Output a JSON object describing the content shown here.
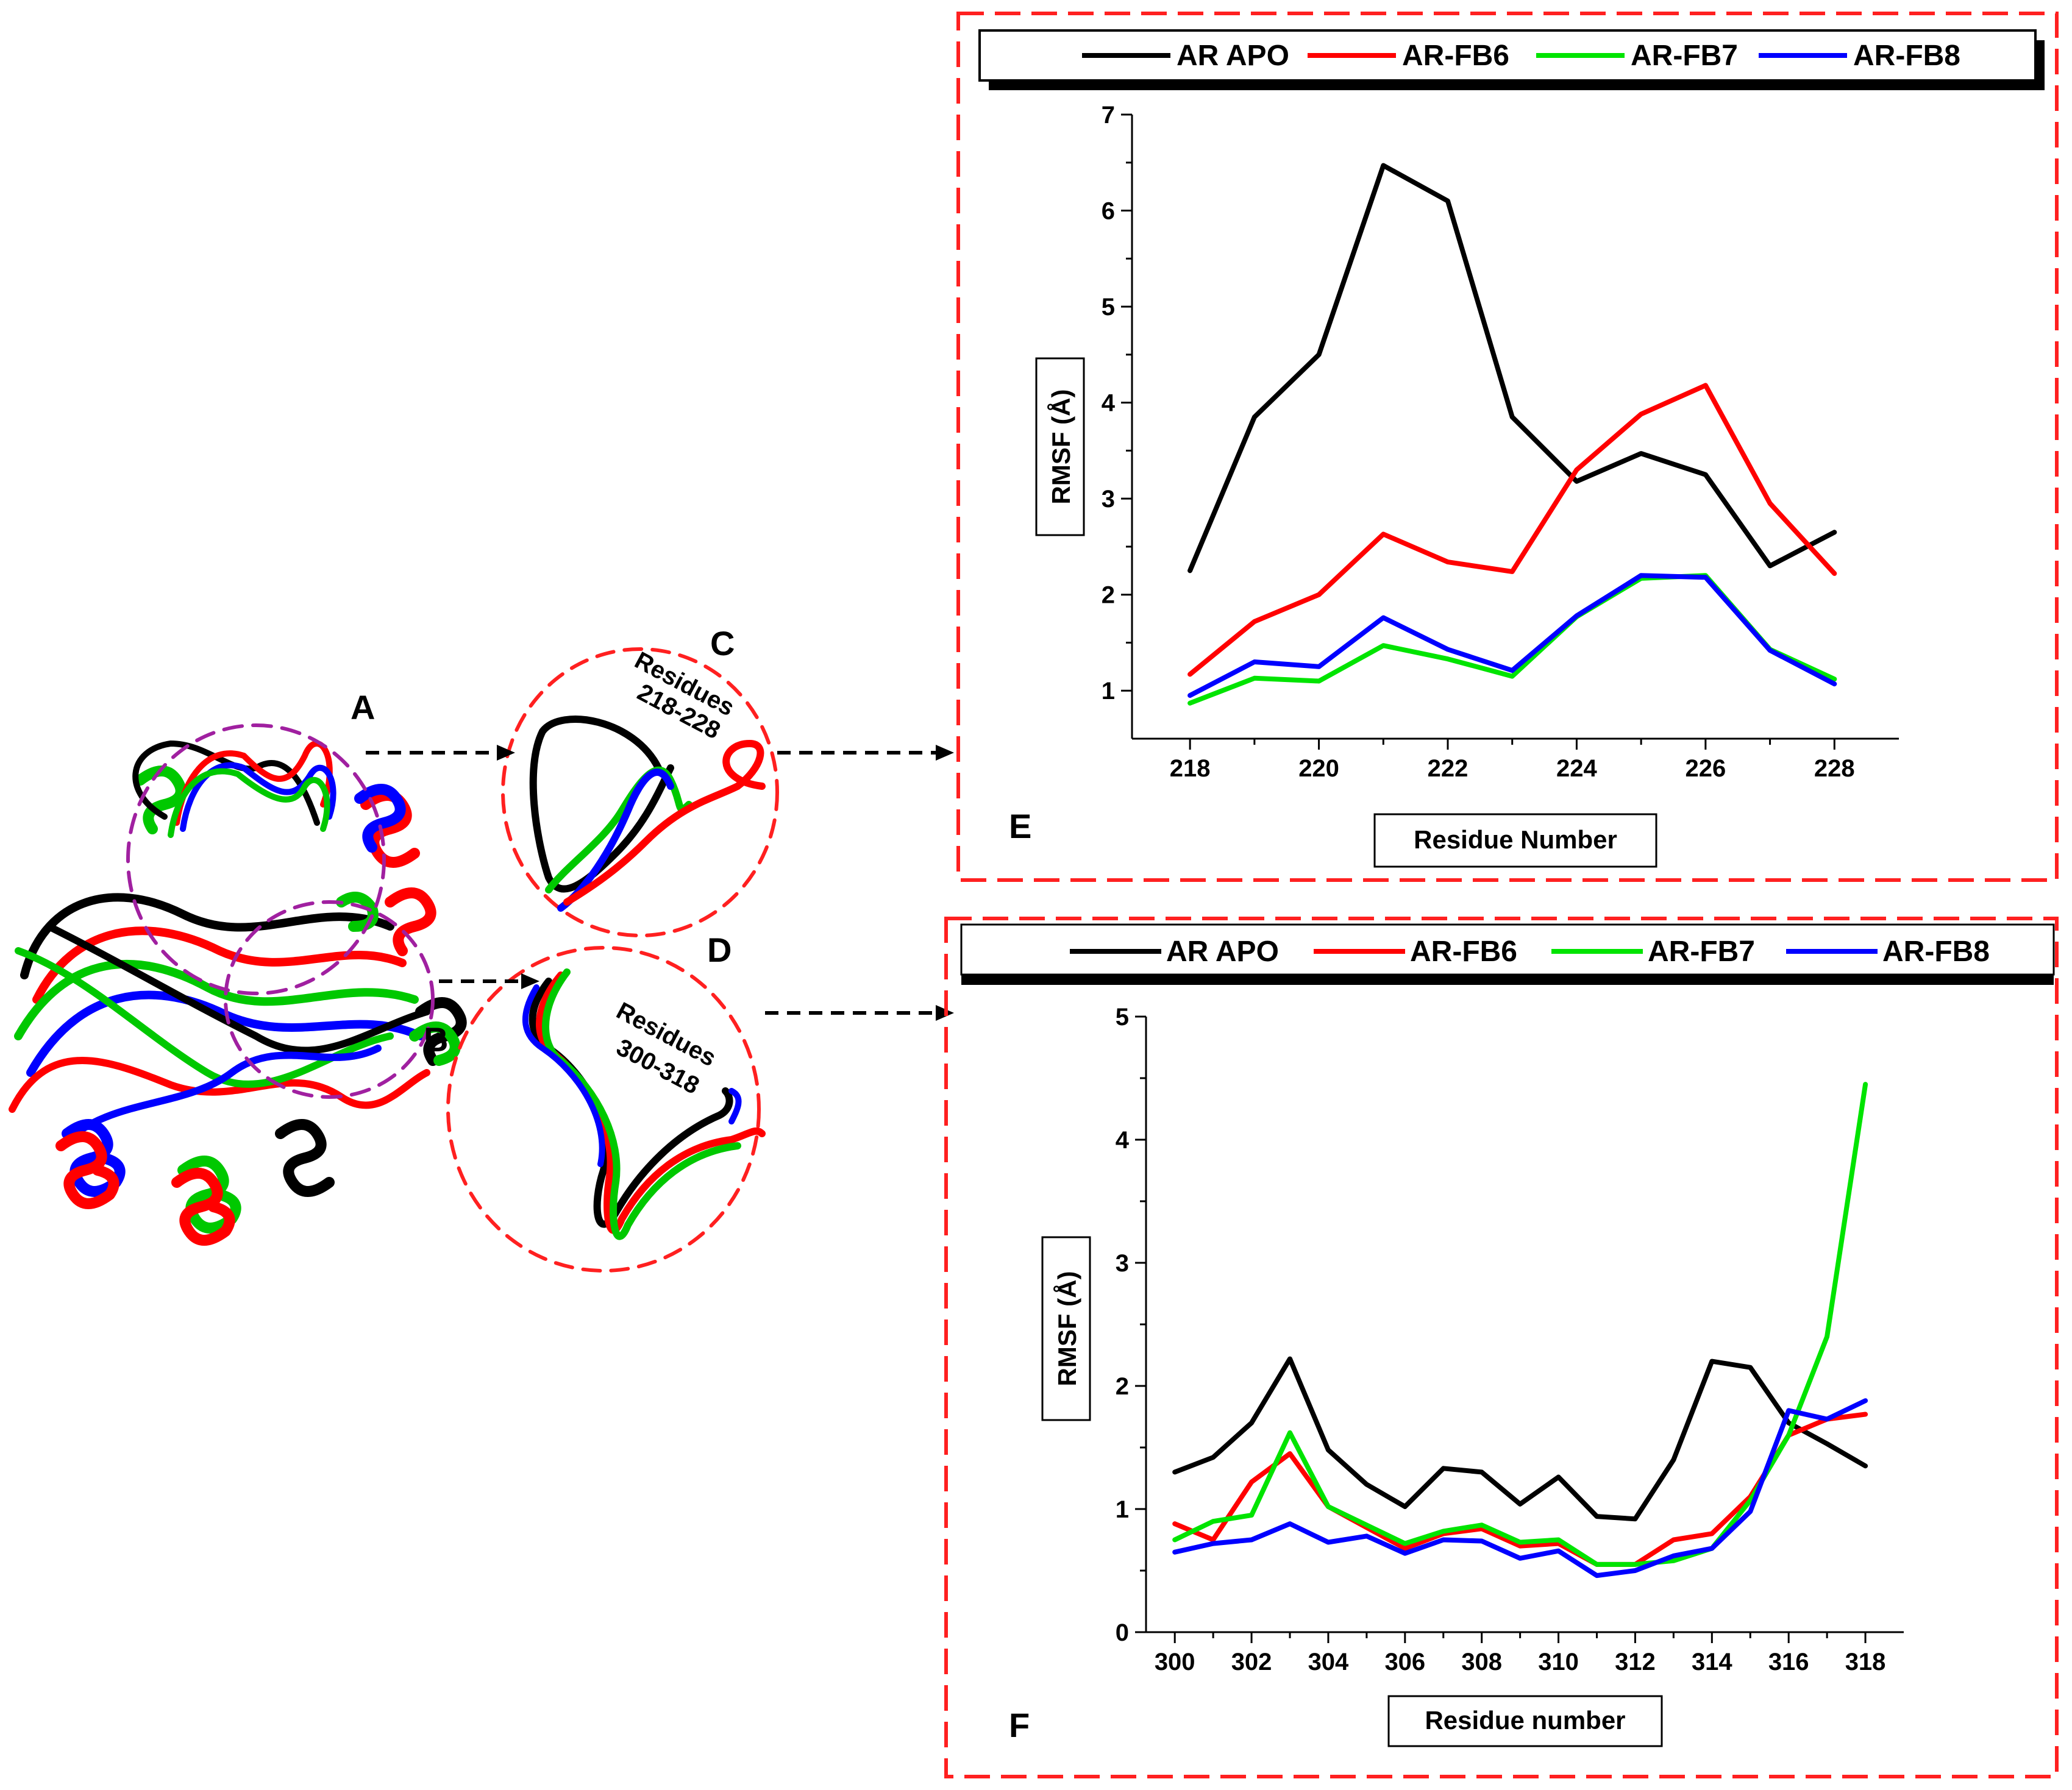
{
  "structure_view": {
    "circle_labels": {
      "a": "A",
      "b": "B",
      "c": "C",
      "d": "D"
    },
    "zoom_c_text": [
      "Residues",
      "218-228"
    ],
    "zoom_d_text": [
      "Residues",
      "300-318"
    ]
  },
  "series_colors": {
    "AR APO": "#000000",
    "AR-FB6": "#ff0000",
    "AR-FB7": "#00e400",
    "AR-FB8": "#0000ff"
  },
  "chart_data": [
    {
      "type": "line",
      "panel_label": "E",
      "xlabel": "Residue Number",
      "ylabel": "RMSF (Å)",
      "xlim": [
        217.1,
        229.0
      ],
      "ylim": [
        0.5,
        7.0
      ],
      "x_ticks": [
        218,
        220,
        222,
        224,
        226,
        228
      ],
      "y_ticks": [
        1,
        2,
        3,
        4,
        5,
        6,
        7
      ],
      "x": [
        218,
        219,
        220,
        221,
        222,
        223,
        224,
        225,
        226,
        227,
        228
      ],
      "legend": [
        "AR APO",
        "AR-FB6",
        "AR-FB7",
        "AR-FB8"
      ],
      "series": [
        {
          "name": "AR APO",
          "values": [
            2.25,
            3.85,
            4.5,
            6.47,
            6.1,
            3.85,
            3.18,
            3.47,
            3.25,
            2.3,
            2.65
          ]
        },
        {
          "name": "AR-FB6",
          "values": [
            1.17,
            1.72,
            2.0,
            2.63,
            2.34,
            2.24,
            3.3,
            3.88,
            4.18,
            2.95,
            2.22
          ]
        },
        {
          "name": "AR-FB7",
          "values": [
            0.87,
            1.13,
            1.1,
            1.47,
            1.33,
            1.15,
            1.77,
            2.17,
            2.2,
            1.43,
            1.12
          ]
        },
        {
          "name": "AR-FB8",
          "values": [
            0.95,
            1.3,
            1.25,
            1.76,
            1.43,
            1.21,
            1.78,
            2.2,
            2.18,
            1.42,
            1.07
          ]
        }
      ]
    },
    {
      "type": "line",
      "panel_label": "F",
      "xlabel": "Residue number",
      "ylabel": "RMSF (Å)",
      "xlim": [
        299.25,
        319.0
      ],
      "ylim": [
        0,
        5
      ],
      "x_ticks": [
        300,
        302,
        304,
        306,
        308,
        310,
        312,
        314,
        316,
        318
      ],
      "y_ticks": [
        0,
        1,
        2,
        3,
        4,
        5
      ],
      "x": [
        300,
        301,
        302,
        303,
        304,
        305,
        306,
        307,
        308,
        309,
        310,
        311,
        312,
        313,
        314,
        315,
        316,
        317,
        318
      ],
      "legend": [
        "AR APO",
        "AR-FB6",
        "AR-FB7",
        "AR-FB8"
      ],
      "series": [
        {
          "name": "AR APO",
          "values": [
            1.3,
            1.42,
            1.7,
            2.22,
            1.48,
            1.2,
            1.02,
            1.33,
            1.3,
            1.04,
            1.26,
            0.94,
            0.92,
            1.4,
            2.2,
            2.15,
            1.7,
            1.53,
            1.35
          ]
        },
        {
          "name": "AR-FB6",
          "values": [
            0.88,
            0.75,
            1.22,
            1.45,
            1.02,
            0.85,
            0.68,
            0.8,
            0.84,
            0.7,
            0.72,
            0.55,
            0.55,
            0.75,
            0.8,
            1.1,
            1.6,
            1.73,
            1.77
          ]
        },
        {
          "name": "AR-FB7",
          "values": [
            0.75,
            0.9,
            0.95,
            1.62,
            1.02,
            0.87,
            0.72,
            0.82,
            0.87,
            0.73,
            0.75,
            0.55,
            0.55,
            0.58,
            0.68,
            1.07,
            1.6,
            2.4,
            4.45
          ]
        },
        {
          "name": "AR-FB8",
          "values": [
            0.65,
            0.72,
            0.75,
            0.88,
            0.73,
            0.78,
            0.64,
            0.75,
            0.74,
            0.6,
            0.66,
            0.46,
            0.5,
            0.62,
            0.68,
            0.98,
            1.8,
            1.73,
            1.88
          ]
        }
      ]
    }
  ]
}
